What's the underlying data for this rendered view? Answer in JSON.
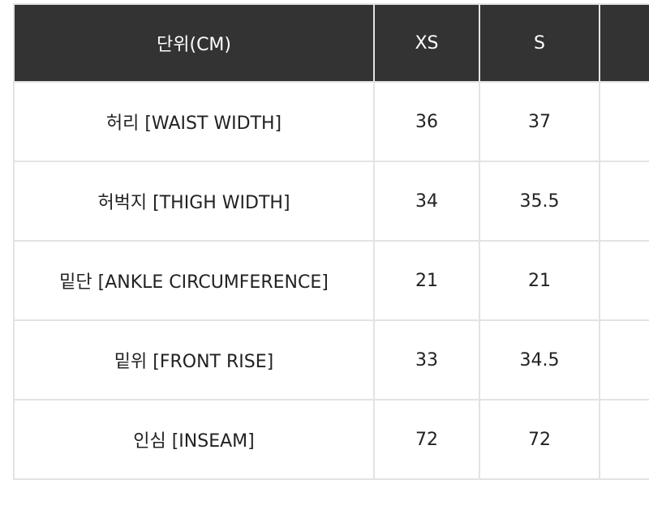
{
  "header": {
    "unit_label": "단위(CM)",
    "sizes": [
      "XS",
      "S",
      ""
    ]
  },
  "rows": [
    {
      "label": "허리 [WAIST WIDTH]",
      "xs": "36",
      "s": "37",
      "extra": ""
    },
    {
      "label": "허벅지 [THIGH WIDTH]",
      "xs": "34",
      "s": "35.5",
      "extra": ""
    },
    {
      "label": "밑단 [ANKLE CIRCUMFERENCE]",
      "xs": "21",
      "s": "21",
      "extra": ""
    },
    {
      "label": "밑위 [FRONT RISE]",
      "xs": "33",
      "s": "34.5",
      "extra": ""
    },
    {
      "label": "인심 [INSEAM]",
      "xs": "72",
      "s": "72",
      "extra": ""
    }
  ],
  "colors": {
    "header_bg": "#333333",
    "header_text": "#ffffff",
    "border": "#e3e3e3",
    "body_text": "#222222"
  }
}
